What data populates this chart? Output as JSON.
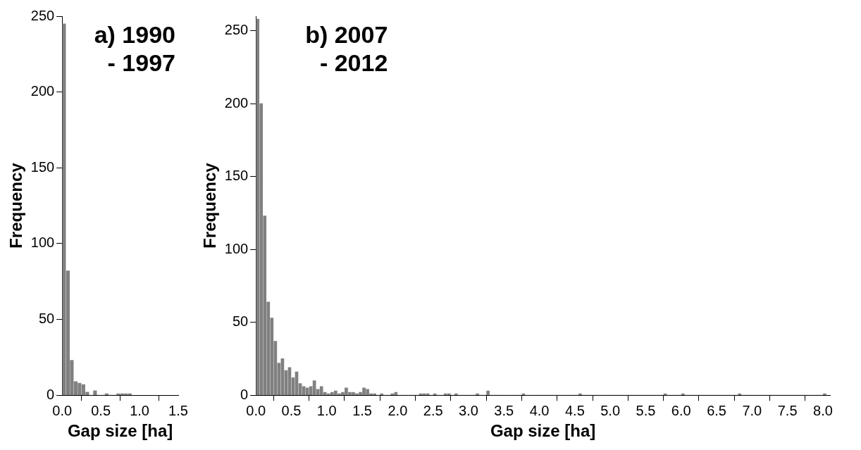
{
  "chart_data": [
    {
      "type": "histogram",
      "title": "a) 1990\n- 1997",
      "xlabel": "Gap size [ha]",
      "ylabel": "Frequency",
      "bins": [
        0,
        0.05,
        0.1,
        0.15,
        0.2,
        0.25,
        0.3,
        0.35,
        0.4,
        0.45,
        0.5,
        0.55,
        0.6,
        0.65,
        0.7,
        0.75,
        0.8,
        0.85,
        0.9
      ],
      "values": [
        245,
        82,
        23,
        9,
        8,
        7,
        2,
        0,
        3,
        0,
        0,
        1,
        0,
        0,
        1,
        1,
        1,
        1
      ],
      "color": "#808080",
      "xlim": [
        0,
        1.5
      ],
      "xticks": [
        {
          "value": 0,
          "label": "0.0"
        },
        {
          "value": 0.5,
          "label": "0.5"
        },
        {
          "value": 1,
          "label": "1.0"
        },
        {
          "value": 1.5,
          "label": "1.5"
        }
      ],
      "ylim": [
        0,
        250
      ],
      "yticks": [
        0,
        50,
        100,
        150,
        200,
        250
      ],
      "grid": false
    },
    {
      "type": "histogram",
      "title": "b) 2007\n- 2012",
      "xlabel": "Gap size [ha]",
      "ylabel": "Frequency",
      "bins": [
        0,
        0.05,
        0.1,
        0.15,
        0.2,
        0.25,
        0.3,
        0.35,
        0.4,
        0.45,
        0.5,
        0.55,
        0.6,
        0.65,
        0.7,
        0.75,
        0.8,
        0.85,
        0.9,
        0.95,
        1,
        1.05,
        1.1,
        1.15,
        1.2,
        1.25,
        1.3,
        1.35,
        1.4,
        1.45,
        1.5,
        1.55,
        1.6,
        1.65,
        1.7,
        1.75,
        1.8,
        1.85,
        1.9,
        1.95,
        2,
        2.05,
        2.1,
        2.15,
        2.2,
        2.25,
        2.3,
        2.35,
        2.4,
        2.45,
        2.5,
        2.55,
        2.6,
        2.65,
        2.7,
        2.75,
        2.8,
        2.85,
        2.9,
        2.95,
        3,
        3.05,
        3.1,
        3.15,
        3.2,
        3.25,
        3.3,
        3.35,
        3.4,
        3.45,
        3.5,
        3.55,
        3.6,
        3.65,
        3.7,
        3.75,
        3.8,
        3.85,
        3.9,
        3.95,
        4,
        4.05,
        4.1,
        4.15,
        4.2,
        4.25,
        4.3,
        4.35,
        4.4,
        4.45,
        4.5,
        4.55,
        4.6,
        4.65,
        4.7,
        4.75,
        4.8,
        4.85,
        4.9,
        4.95,
        5,
        5.05,
        5.1,
        5.15,
        5.2,
        5.25,
        5.3,
        5.35,
        5.4,
        5.45,
        5.5,
        5.55,
        5.6,
        5.65,
        5.7,
        5.75,
        5.8,
        5.85,
        5.9,
        5.95,
        6,
        6.05,
        6.1,
        6.15,
        6.2,
        6.25,
        6.3,
        6.35,
        6.4,
        6.45,
        6.5,
        6.55,
        6.6,
        6.65,
        6.7,
        6.75,
        6.8,
        6.85,
        6.9,
        6.95,
        7,
        7.05,
        7.1,
        7.15,
        7.2,
        7.25,
        7.3,
        7.35,
        7.4,
        7.45,
        7.5,
        7.55,
        7.6,
        7.65,
        7.7,
        7.75,
        7.8,
        7.85,
        7.9,
        7.95,
        8,
        8.05
      ],
      "values": [
        258,
        200,
        123,
        64,
        53,
        37,
        22,
        25,
        17,
        19,
        12,
        16,
        8,
        6,
        5,
        6,
        10,
        4,
        6,
        2,
        1,
        2,
        3,
        1,
        2,
        5,
        2,
        2,
        1,
        2,
        5,
        4,
        1,
        1,
        0,
        1,
        0,
        0,
        1,
        2,
        0,
        0,
        0,
        0,
        0,
        0,
        1,
        1,
        1,
        0,
        1,
        0,
        0,
        1,
        1,
        0,
        1,
        0,
        0,
        0,
        0,
        0,
        1,
        0,
        0,
        3,
        0,
        0,
        0,
        0,
        0,
        0,
        0,
        0,
        0,
        1,
        0,
        0,
        0,
        0,
        0,
        0,
        0,
        0,
        0,
        0,
        0,
        0,
        0,
        0,
        0,
        1,
        0,
        0,
        0,
        0,
        0,
        0,
        0,
        0,
        0,
        0,
        0,
        0,
        0,
        0,
        0,
        0,
        0,
        0,
        0,
        0,
        0,
        0,
        0,
        1,
        0,
        0,
        0,
        0,
        1,
        0,
        0,
        0,
        0,
        0,
        0,
        0,
        0,
        0,
        0,
        0,
        0,
        0,
        0,
        0,
        1,
        0,
        0,
        0,
        0,
        0,
        0,
        0,
        0,
        0,
        0,
        0,
        0,
        0,
        0,
        0,
        0,
        0,
        0,
        0,
        0,
        0,
        0,
        0,
        1
      ],
      "color": "#808080",
      "xlim": [
        0,
        8.1
      ],
      "xticks": [
        {
          "value": 0,
          "label": "0.0"
        },
        {
          "value": 0.5,
          "label": "0.5"
        },
        {
          "value": 1,
          "label": "1.0"
        },
        {
          "value": 1.5,
          "label": "1.5"
        },
        {
          "value": 2,
          "label": "2.0"
        },
        {
          "value": 2.5,
          "label": "2.5"
        },
        {
          "value": 3,
          "label": "3.0"
        },
        {
          "value": 3.5,
          "label": "3.5"
        },
        {
          "value": 4,
          "label": "4.0"
        },
        {
          "value": 4.5,
          "label": "4.5"
        },
        {
          "value": 5,
          "label": "5.0"
        },
        {
          "value": 5.5,
          "label": "5.5"
        },
        {
          "value": 6,
          "label": "6.0"
        },
        {
          "value": 6.5,
          "label": "6.5"
        },
        {
          "value": 7,
          "label": "7.0"
        },
        {
          "value": 7.5,
          "label": "7.5"
        },
        {
          "value": 8,
          "label": "8.0"
        }
      ],
      "ylim": [
        0,
        260
      ],
      "yticks": [
        0,
        50,
        100,
        150,
        200,
        250
      ],
      "grid": false
    }
  ]
}
